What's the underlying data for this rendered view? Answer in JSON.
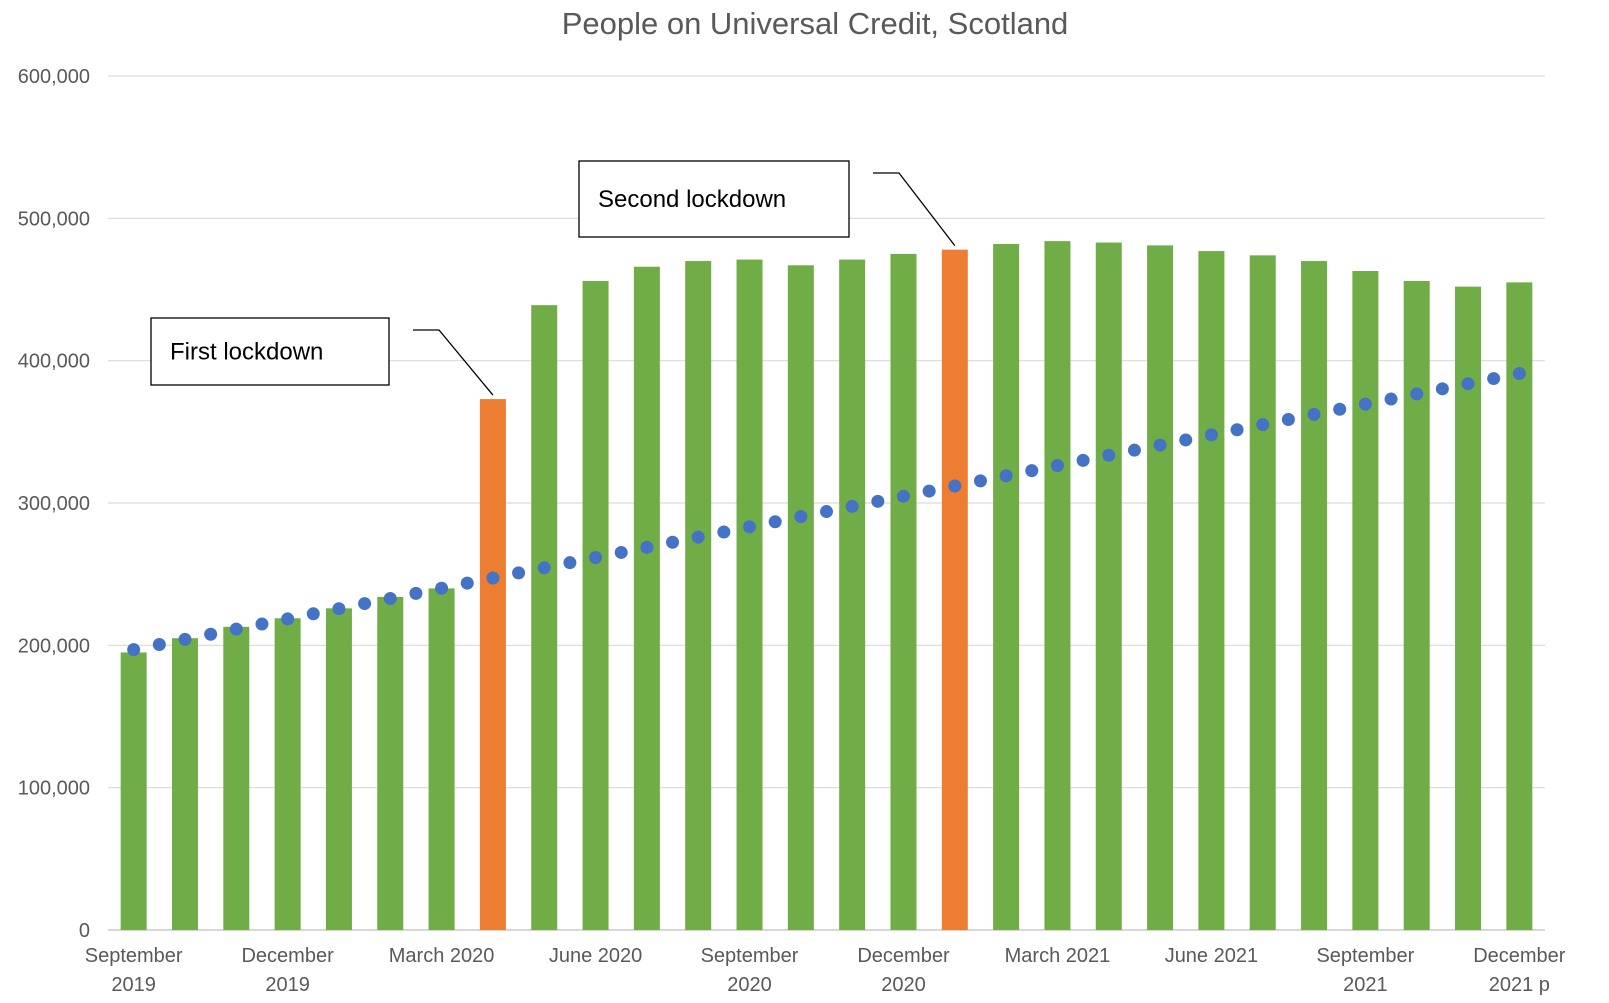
{
  "chart_data": {
    "type": "bar",
    "title": "People on Universal Credit, Scotland",
    "xlabel": "",
    "ylabel": "",
    "ylim": [
      0,
      600000
    ],
    "yticks": [
      0,
      100000,
      200000,
      300000,
      400000,
      500000,
      600000
    ],
    "ytick_labels": [
      "0",
      "100,000",
      "200,000",
      "300,000",
      "400,000",
      "500,000",
      "600,000"
    ],
    "grid": true,
    "legend": "none",
    "categories": [
      "Sep 2019",
      "Oct 2019",
      "Nov 2019",
      "Dec 2019",
      "Jan 2020",
      "Feb 2020",
      "Mar 2020",
      "Apr 2020",
      "May 2020",
      "Jun 2020",
      "Jul 2020",
      "Aug 2020",
      "Sep 2020",
      "Oct 2020",
      "Nov 2020",
      "Dec 2020",
      "Jan 2021",
      "Feb 2021",
      "Mar 2021",
      "Apr 2021",
      "May 2021",
      "Jun 2021",
      "Jul 2021",
      "Aug 2021",
      "Sep 2021",
      "Oct 2021",
      "Nov 2021",
      "Dec 2021"
    ],
    "values": [
      195000,
      205000,
      213000,
      219000,
      226000,
      234000,
      240000,
      373000,
      439000,
      456000,
      466000,
      470000,
      471000,
      467000,
      471000,
      475000,
      478000,
      482000,
      484000,
      483000,
      481000,
      477000,
      474000,
      470000,
      463000,
      456000,
      452000,
      455000
    ],
    "highlight_indices": [
      7,
      16
    ],
    "bar_color": "#70AD47",
    "highlight_color": "#ED7D31",
    "trendline": {
      "style": "dotted",
      "color": "#4472C4",
      "start": 197000,
      "end": 391000
    },
    "xtick_labels": [
      {
        "index": 0,
        "lines": [
          "September",
          "2019"
        ]
      },
      {
        "index": 3,
        "lines": [
          "December",
          "2019"
        ]
      },
      {
        "index": 6,
        "lines": [
          "March 2020"
        ]
      },
      {
        "index": 9,
        "lines": [
          "June 2020"
        ]
      },
      {
        "index": 12,
        "lines": [
          "September",
          "2020"
        ]
      },
      {
        "index": 15,
        "lines": [
          "December",
          "2020"
        ]
      },
      {
        "index": 18,
        "lines": [
          "March 2021"
        ]
      },
      {
        "index": 21,
        "lines": [
          "June 2021"
        ]
      },
      {
        "index": 24,
        "lines": [
          "September",
          "2021"
        ]
      },
      {
        "index": 27,
        "lines": [
          "December",
          "2021 p"
        ]
      }
    ],
    "annotations": [
      {
        "text": "First lockdown",
        "target_index": 7
      },
      {
        "text": "Second lockdown",
        "target_index": 16
      }
    ]
  }
}
